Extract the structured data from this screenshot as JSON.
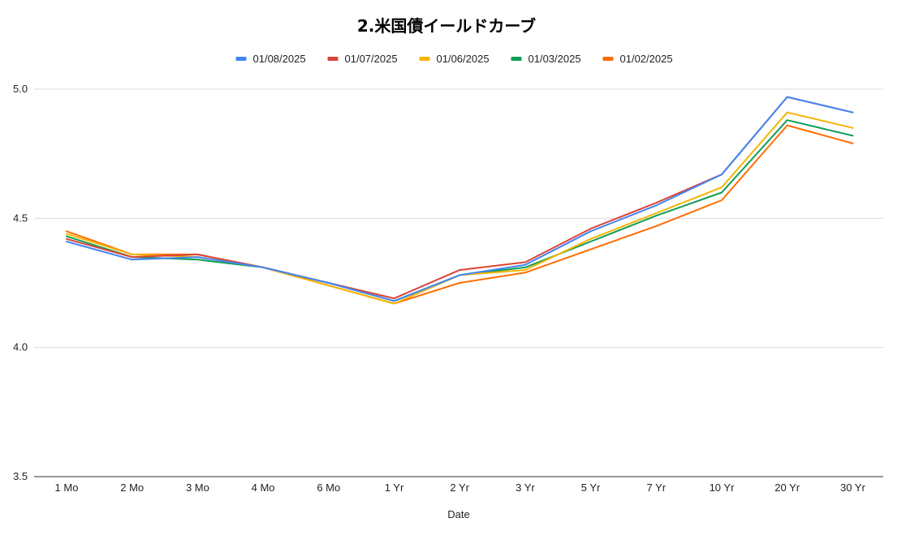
{
  "chart_data": {
    "type": "line",
    "title": "2.米国債イールドカーブ",
    "xlabel": "Date",
    "ylabel": "",
    "ylim": [
      3.5,
      5.0
    ],
    "yticks": [
      "3.5",
      "4.0",
      "4.5",
      "5.0"
    ],
    "yticks_values": [
      3.5,
      4.0,
      4.5,
      5.0
    ],
    "grid": true,
    "legend_position": "top",
    "categories": [
      "1 Mo",
      "2 Mo",
      "3 Mo",
      "4 Mo",
      "6 Mo",
      "1 Yr",
      "2 Yr",
      "3 Yr",
      "5 Yr",
      "7 Yr",
      "10 Yr",
      "20 Yr",
      "30 Yr"
    ],
    "series": [
      {
        "name": "01/08/2025",
        "color": "#4285F4",
        "values": [
          4.41,
          4.34,
          4.35,
          4.31,
          4.25,
          4.18,
          4.28,
          4.32,
          4.45,
          4.55,
          4.67,
          4.97,
          4.91
        ]
      },
      {
        "name": "01/07/2025",
        "color": "#DB4437",
        "values": [
          4.42,
          4.35,
          4.36,
          4.31,
          4.25,
          4.19,
          4.3,
          4.33,
          4.46,
          4.56,
          4.67,
          4.97,
          4.91
        ]
      },
      {
        "name": "01/06/2025",
        "color": "#F4B400",
        "values": [
          4.44,
          4.36,
          4.35,
          4.31,
          4.24,
          4.17,
          4.28,
          4.3,
          4.42,
          4.52,
          4.62,
          4.91,
          4.85
        ]
      },
      {
        "name": "01/03/2025",
        "color": "#0F9D58",
        "values": [
          4.43,
          4.35,
          4.34,
          4.31,
          4.25,
          4.18,
          4.28,
          4.31,
          4.41,
          4.51,
          4.6,
          4.88,
          4.82
        ]
      },
      {
        "name": "01/02/2025",
        "color": "#FF6D01",
        "values": [
          4.45,
          4.36,
          4.36,
          4.31,
          4.24,
          4.17,
          4.25,
          4.29,
          4.38,
          4.47,
          4.57,
          4.86,
          4.79
        ]
      }
    ]
  }
}
